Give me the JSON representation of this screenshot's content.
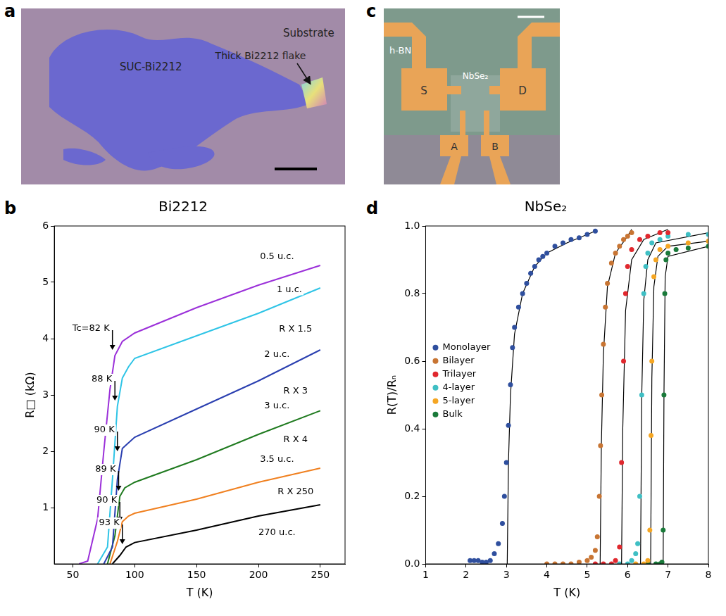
{
  "images": [
    {
      "panel_label": "a",
      "texts": {
        "substrate": "Substrate",
        "film": "SUC-Bi2212",
        "flake": "Thick Bi2212 flake"
      }
    },
    {
      "panel_label": "c",
      "texts": {
        "hbn": "h-BN",
        "material": "NbSe₂",
        "source": "S",
        "drain": "D",
        "probe_a": "A",
        "probe_b": "B"
      }
    }
  ],
  "chart_data": [
    {
      "panel_label": "b",
      "type": "line",
      "title": "Bi2212",
      "x_label": "T (K)",
      "y_label": "R□ (kΩ)",
      "xlim": [
        35,
        270
      ],
      "xticks": [
        50,
        100,
        150,
        200,
        250
      ],
      "ylim": [
        0,
        6
      ],
      "yticks": [
        1,
        2,
        3,
        4,
        5,
        6
      ],
      "grid": false,
      "series": [
        {
          "name": "0.5 u.c.",
          "color": "#9b30d9",
          "x": [
            55,
            62,
            70,
            75,
            80,
            84,
            90,
            100,
            150,
            200,
            250
          ],
          "values": [
            0,
            0.05,
            0.8,
            2.0,
            3.1,
            3.7,
            3.95,
            4.1,
            4.55,
            4.95,
            5.3
          ]
        },
        {
          "name": "1 u.c.",
          "color": "#2ec4e6",
          "x": [
            70,
            78,
            82,
            86,
            90,
            95,
            100,
            150,
            200,
            250
          ],
          "values": [
            0,
            0.3,
            1.5,
            2.8,
            3.3,
            3.5,
            3.65,
            4.05,
            4.45,
            4.9
          ]
        },
        {
          "name": "2 u.c.",
          "color": "#2a3fb0",
          "x": [
            75,
            82,
            86,
            90,
            95,
            100,
            150,
            200,
            250
          ],
          "values": [
            0,
            0.3,
            1.5,
            2.05,
            2.15,
            2.25,
            2.75,
            3.25,
            3.8
          ]
        },
        {
          "name": "3 u.c.",
          "color": "#1f7a1f",
          "x": [
            78,
            84,
            88,
            92,
            100,
            150,
            200,
            250
          ],
          "values": [
            0,
            0.5,
            1.2,
            1.35,
            1.45,
            1.85,
            2.3,
            2.72
          ]
        },
        {
          "name": "3.5 u.c.",
          "color": "#f08020",
          "x": [
            80,
            86,
            90,
            95,
            100,
            150,
            200,
            250
          ],
          "values": [
            0,
            0.4,
            0.75,
            0.85,
            0.9,
            1.15,
            1.45,
            1.7
          ]
        },
        {
          "name": "270 u.c.",
          "color": "#000000",
          "x": [
            82,
            88,
            93,
            100,
            150,
            200,
            250
          ],
          "values": [
            0,
            0.15,
            0.3,
            0.38,
            0.6,
            0.85,
            1.05
          ]
        }
      ],
      "annotations": [
        {
          "text": "0.5 u.c.",
          "x": 215,
          "y": 5.45
        },
        {
          "text": "1 u.c.",
          "x": 225,
          "y": 4.87
        },
        {
          "text": "R X 1.5",
          "x": 230,
          "y": 4.17
        },
        {
          "text": "2 u.c.",
          "x": 215,
          "y": 3.72
        },
        {
          "text": "R X 3",
          "x": 230,
          "y": 3.07
        },
        {
          "text": "3 u.c.",
          "x": 215,
          "y": 2.8
        },
        {
          "text": "R X 4",
          "x": 230,
          "y": 2.2
        },
        {
          "text": "3.5 u.c.",
          "x": 215,
          "y": 1.85
        },
        {
          "text": "R X 250",
          "x": 230,
          "y": 1.28
        },
        {
          "text": "270 u.c.",
          "x": 215,
          "y": 0.55
        }
      ],
      "tc_labels": [
        {
          "text": "Tc=82 K",
          "x": 82,
          "y": 3.8
        },
        {
          "text": "88 K",
          "x": 84,
          "y": 2.9
        },
        {
          "text": "90 K",
          "x": 86,
          "y": 2.0
        },
        {
          "text": "89 K",
          "x": 87,
          "y": 1.3
        },
        {
          "text": "90 K",
          "x": 88,
          "y": 0.75
        },
        {
          "text": "93 K",
          "x": 90,
          "y": 0.35
        }
      ]
    },
    {
      "panel_label": "d",
      "type": "scatter",
      "title": "NbSe₂",
      "x_label": "T (K)",
      "y_label": "R(T)/Rₙ",
      "xlim": [
        1,
        8
      ],
      "xticks": [
        1,
        2,
        3,
        4,
        5,
        6,
        7,
        8
      ],
      "ylim": [
        0,
        1
      ],
      "yticks": [
        {
          "value": 0,
          "label": "0.0"
        },
        0.2,
        0.4,
        0.6,
        0.8,
        {
          "value": 1,
          "label": "1.0"
        }
      ],
      "grid": false,
      "legend": "left",
      "series": [
        {
          "name": "Monolayer",
          "color": "#2f4f9e",
          "x": [
            2.1,
            2.2,
            2.3,
            2.4,
            2.5,
            2.6,
            2.7,
            2.8,
            2.9,
            2.95,
            3.0,
            3.05,
            3.1,
            3.15,
            3.2,
            3.3,
            3.4,
            3.5,
            3.6,
            3.7,
            3.8,
            3.9,
            4.0,
            4.2,
            4.4,
            4.6,
            4.8,
            5.0,
            5.2
          ],
          "values": [
            0.01,
            0.01,
            0.01,
            0.005,
            0.005,
            0.01,
            0.03,
            0.06,
            0.12,
            0.2,
            0.3,
            0.41,
            0.53,
            0.64,
            0.7,
            0.76,
            0.8,
            0.83,
            0.86,
            0.88,
            0.9,
            0.91,
            0.92,
            0.94,
            0.95,
            0.96,
            0.965,
            0.975,
            0.985
          ],
          "fit": {
            "x": [
              3.02,
              3.05,
              3.1,
              3.2,
              3.4,
              3.7,
              4.0,
              4.5,
              5.2
            ],
            "values": [
              0,
              0.3,
              0.5,
              0.68,
              0.8,
              0.88,
              0.92,
              0.95,
              0.985
            ]
          }
        },
        {
          "name": "Bilayer",
          "color": "#c87533",
          "x": [
            4.0,
            4.2,
            4.4,
            4.6,
            4.8,
            5.0,
            5.1,
            5.2,
            5.25,
            5.3,
            5.33,
            5.36,
            5.4,
            5.45,
            5.5,
            5.6,
            5.7,
            5.8,
            5.9,
            6.0,
            6.1
          ],
          "values": [
            0,
            0,
            0,
            0,
            0.005,
            0.01,
            0.02,
            0.04,
            0.08,
            0.2,
            0.35,
            0.5,
            0.65,
            0.76,
            0.83,
            0.89,
            0.92,
            0.94,
            0.96,
            0.97,
            0.98
          ],
          "fit": {
            "x": [
              5.32,
              5.35,
              5.4,
              5.5,
              5.7,
              6.0,
              6.1
            ],
            "values": [
              0,
              0.35,
              0.62,
              0.82,
              0.92,
              0.97,
              0.99
            ]
          }
        },
        {
          "name": "Trilayer",
          "color": "#e0282e",
          "x": [
            5.2,
            5.4,
            5.6,
            5.7,
            5.8,
            5.85,
            5.9,
            5.95,
            6.0,
            6.1,
            6.3,
            6.5,
            6.8,
            7.0
          ],
          "values": [
            0,
            0,
            0,
            0.01,
            0.05,
            0.3,
            0.6,
            0.8,
            0.88,
            0.93,
            0.96,
            0.97,
            0.98,
            0.98
          ],
          "fit": {
            "x": [
              5.85,
              5.88,
              5.95,
              6.1,
              6.4,
              7.0
            ],
            "values": [
              0,
              0.4,
              0.75,
              0.9,
              0.96,
              0.99
            ]
          }
        },
        {
          "name": "4-layer",
          "color": "#3fbfc4",
          "x": [
            5.8,
            6.0,
            6.1,
            6.2,
            6.25,
            6.3,
            6.35,
            6.4,
            6.45,
            6.5,
            6.6,
            6.8,
            7.0,
            7.5,
            8.0
          ],
          "values": [
            0,
            0,
            0.01,
            0.03,
            0.06,
            0.2,
            0.5,
            0.8,
            0.88,
            0.92,
            0.95,
            0.96,
            0.97,
            0.975,
            0.975
          ],
          "fit": {
            "x": [
              6.32,
              6.35,
              6.4,
              6.5,
              6.7,
              8.0
            ],
            "values": [
              0,
              0.5,
              0.78,
              0.9,
              0.95,
              0.98
            ]
          }
        },
        {
          "name": "5-layer",
          "color": "#f5a623",
          "x": [
            6.2,
            6.4,
            6.5,
            6.55,
            6.58,
            6.6,
            6.65,
            6.7,
            6.8,
            7.0,
            7.5,
            8.0
          ],
          "values": [
            0,
            0,
            0.01,
            0.1,
            0.38,
            0.6,
            0.85,
            0.9,
            0.93,
            0.94,
            0.95,
            0.955
          ],
          "fit": {
            "x": [
              6.57,
              6.6,
              6.65,
              6.75,
              7.0,
              8.0
            ],
            "values": [
              0,
              0.55,
              0.82,
              0.91,
              0.94,
              0.955
            ]
          }
        },
        {
          "name": "Bulk",
          "color": "#1a7a3a",
          "x": [
            6.5,
            6.7,
            6.8,
            6.85,
            6.88,
            6.9,
            6.92,
            6.95,
            7.0,
            7.2,
            7.5,
            8.0
          ],
          "values": [
            0,
            0,
            0,
            0.005,
            0.1,
            0.5,
            0.8,
            0.9,
            0.92,
            0.93,
            0.935,
            0.94
          ],
          "fit": {
            "x": [
              6.88,
              6.9,
              6.93,
              7.0,
              8.0
            ],
            "values": [
              0,
              0.5,
              0.85,
              0.91,
              0.94
            ]
          }
        }
      ]
    }
  ]
}
